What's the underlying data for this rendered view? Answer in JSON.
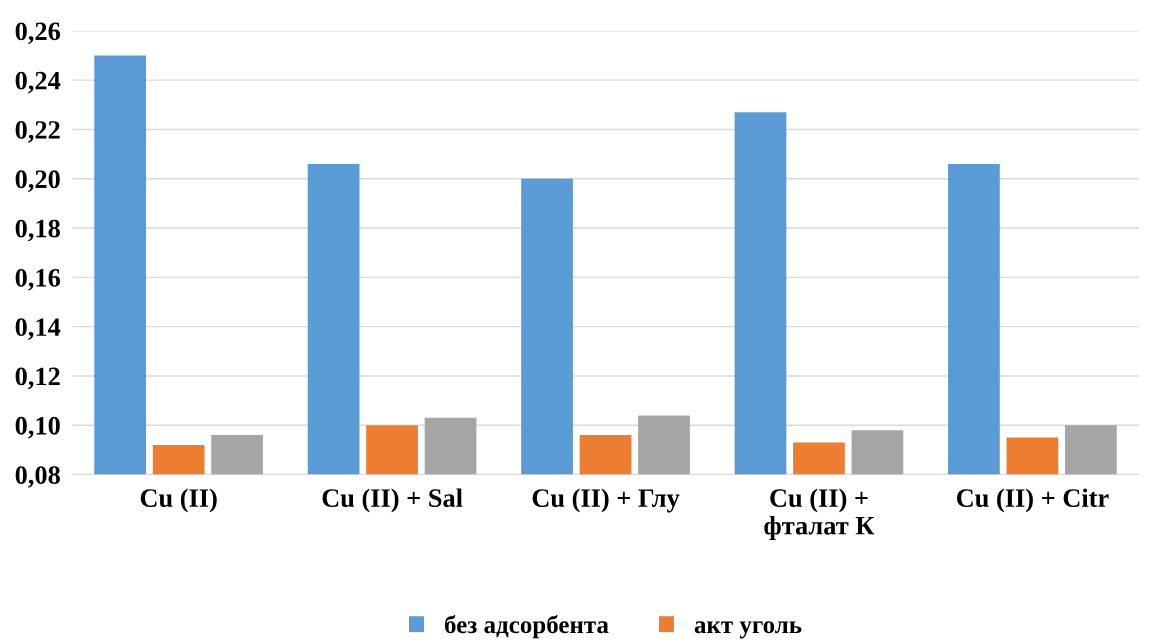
{
  "chart_data": {
    "type": "bar",
    "categories": [
      "Cu (II)",
      "Cu (II) + Sal",
      "Cu (II) + Глу",
      "Cu (II) +\nфталат К",
      "Cu (II) + Citr"
    ],
    "series": [
      {
        "name": "без адсорбента",
        "color": "#5b9bd5",
        "values": [
          0.25,
          0.206,
          0.2,
          0.227,
          0.206
        ]
      },
      {
        "name": "акт уголь",
        "color": "#ed7d31",
        "values": [
          0.092,
          0.1,
          0.096,
          0.093,
          0.095
        ]
      },
      {
        "color": "#a5a5a5",
        "values": [
          0.096,
          0.103,
          0.104,
          0.098,
          0.1
        ]
      }
    ],
    "ylim": [
      0.08,
      0.26
    ],
    "yticks": [
      {
        "value": 0.08,
        "label": "0,08"
      },
      {
        "value": 0.1,
        "label": "0,10"
      },
      {
        "value": 0.12,
        "label": "0,12"
      },
      {
        "value": 0.14,
        "label": "0,14"
      },
      {
        "value": 0.16,
        "label": "0,16"
      },
      {
        "value": 0.18,
        "label": "0,18"
      },
      {
        "value": 0.2,
        "label": "0,20"
      },
      {
        "value": 0.22,
        "label": "0,22"
      },
      {
        "value": 0.24,
        "label": "0,24"
      },
      {
        "value": 0.26,
        "label": "0,26"
      }
    ],
    "grid": "y",
    "legend": "bottom"
  }
}
